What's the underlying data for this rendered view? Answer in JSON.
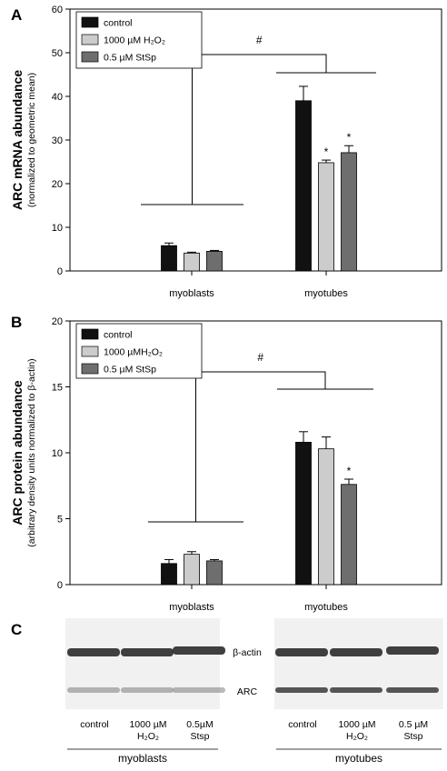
{
  "chart_data": [
    {
      "panel": "A",
      "type": "bar",
      "ylabel": "ARC mRNA abundance",
      "ylabel_sub": "(normalized to geometric mean)",
      "ylim": [
        0,
        60
      ],
      "yticks": [
        0,
        10,
        20,
        30,
        40,
        50,
        60
      ],
      "categories": [
        "myoblasts",
        "myotubes"
      ],
      "series": [
        {
          "name": "control",
          "values": [
            5.8,
            39.0
          ],
          "errors": [
            0.6,
            3.3
          ],
          "color": "#111111"
        },
        {
          "name": "1000 µM H₂O₂",
          "values": [
            4.1,
            24.8
          ],
          "errors": [
            0.2,
            0.6
          ],
          "color": "#cccccc"
        },
        {
          "name": "0.5 µM StSp",
          "values": [
            4.5,
            27.1
          ],
          "errors": [
            0.2,
            1.6
          ],
          "color": "#6e6e6e"
        }
      ],
      "significance": {
        "marks": [
          "",
          "",
          "",
          "",
          "*",
          "*"
        ],
        "group_mark": "#"
      },
      "legend": "top-left"
    },
    {
      "panel": "B",
      "type": "bar",
      "ylabel": "ARC protein abundance",
      "ylabel_sub": "(arbitrary density units normalized to β-actin)",
      "ylim": [
        0,
        20
      ],
      "yticks": [
        0,
        5,
        10,
        15,
        20
      ],
      "categories": [
        "myoblasts",
        "myotubes"
      ],
      "series": [
        {
          "name": "control",
          "values": [
            1.6,
            10.8
          ],
          "errors": [
            0.3,
            0.8
          ],
          "color": "#111111"
        },
        {
          "name": "1000 µMH₂O₂",
          "values": [
            2.3,
            10.3
          ],
          "errors": [
            0.2,
            0.9
          ],
          "color": "#cccccc"
        },
        {
          "name": "0.5 µM StSp",
          "values": [
            1.8,
            7.6
          ],
          "errors": [
            0.1,
            0.4
          ],
          "color": "#6e6e6e"
        }
      ],
      "significance": {
        "marks": [
          "",
          "",
          "",
          "",
          "",
          "*"
        ],
        "group_mark": "#"
      },
      "legend": "top-left"
    }
  ],
  "panel_c": {
    "letter": "C",
    "band_labels": [
      "β-actin",
      "ARC"
    ],
    "myoblasts": {
      "group_label": "myoblasts",
      "lanes": [
        {
          "line1": "control",
          "line2": ""
        },
        {
          "line1": "1000 µM",
          "line2": "H₂O₂"
        },
        {
          "line1": "0.5µM",
          "line2": "Stsp"
        }
      ]
    },
    "myotubes": {
      "group_label": "myotubes",
      "lanes": [
        {
          "line1": "control",
          "line2": ""
        },
        {
          "line1": "1000 µM",
          "line2": "H₂O₂"
        },
        {
          "line1": "0.5 µM",
          "line2": "Stsp"
        }
      ]
    }
  }
}
